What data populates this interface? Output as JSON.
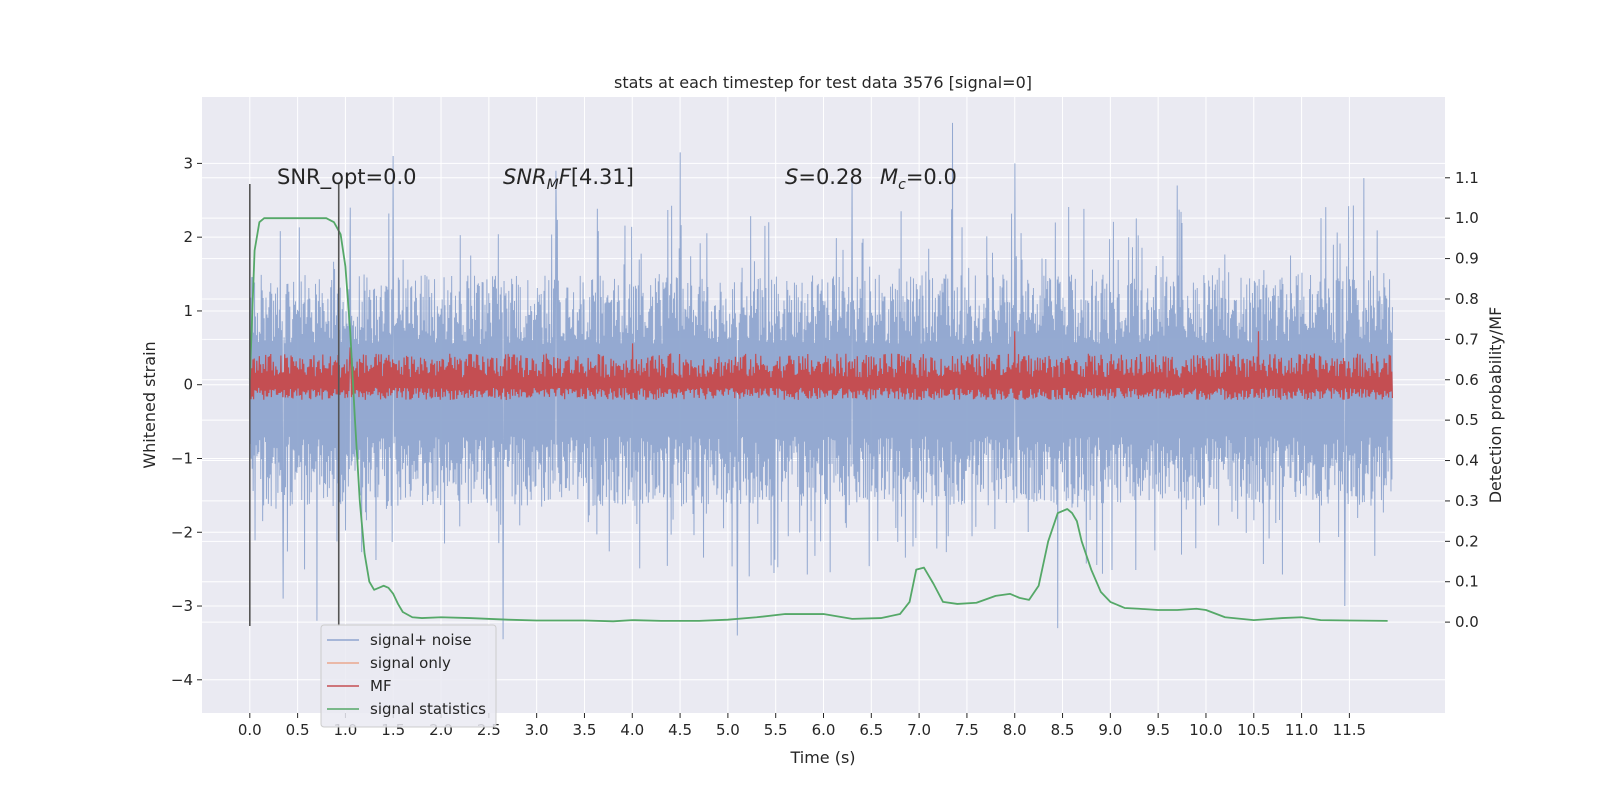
{
  "chart_data": {
    "type": "line",
    "title": "stats at each timestep for test data 3576 [signal=0]",
    "xlabel": "Time (s)",
    "ylabel": "Whitened strain",
    "y2label": "Detection probability/MF",
    "xlim": [
      -0.5,
      12.5
    ],
    "ylim": [
      -4.45,
      3.9
    ],
    "y2lim": [
      -0.225,
      1.3
    ],
    "xticks": [
      "0.0",
      "0.5",
      "1.0",
      "1.5",
      "2.0",
      "2.5",
      "3.0",
      "3.5",
      "4.0",
      "4.5",
      "5.0",
      "5.5",
      "6.0",
      "6.5",
      "7.0",
      "7.5",
      "8.0",
      "8.5",
      "9.0",
      "9.5",
      "10.0",
      "10.5",
      "11.0",
      "11.5"
    ],
    "yticks": [
      "3",
      "2",
      "1",
      "0",
      "−1",
      "−2",
      "−3",
      "−4"
    ],
    "y2ticks": [
      "1.1",
      "1.0",
      "0.9",
      "0.8",
      "0.7",
      "0.6",
      "0.5",
      "0.4",
      "0.3",
      "0.2",
      "0.1",
      "0.0"
    ],
    "grid": true,
    "legend_position": "bottom-left",
    "annotations": {
      "snr_opt": "SNR_opt=0.0",
      "snr_mf": "[4.31]",
      "s": "=0.28",
      "mc": "=0.0"
    },
    "vlines_x": [
      0.0,
      0.93
    ],
    "series": [
      {
        "name": "signal+ noise",
        "color": "#8fa5cf",
        "axis": "left",
        "x_start": 0.0,
        "x_end": 11.95,
        "envelope_upper_typical": 1.45,
        "envelope_lower_typical": -1.6,
        "spikes": [
          [
            1.5,
            3.1
          ],
          [
            4.5,
            3.15
          ],
          [
            7.35,
            3.55
          ],
          [
            8.0,
            3.0
          ],
          [
            11.65,
            2.8
          ],
          [
            5.1,
            -3.4
          ],
          [
            2.65,
            -3.45
          ],
          [
            0.7,
            -3.2
          ],
          [
            11.45,
            -3.0
          ],
          [
            8.45,
            -3.3
          ],
          [
            0.35,
            -2.9
          ],
          [
            1.05,
            2.4
          ],
          [
            3.2,
            2.9
          ],
          [
            9.7,
            2.7
          ],
          [
            6.3,
            2.8
          ]
        ]
      },
      {
        "name": "signal only",
        "color": "#e9a88e",
        "axis": "left",
        "values": []
      },
      {
        "name": "MF",
        "color": "#c44e52",
        "axis": "right",
        "x_start": 0.0,
        "x_end": 11.95,
        "baseline": 0.6,
        "band_low": 0.55,
        "band_high": 0.66,
        "peaks": [
          [
            8.0,
            0.72
          ],
          [
            10.55,
            0.72
          ],
          [
            4.0,
            0.69
          ],
          [
            1.05,
            0.68
          ]
        ]
      },
      {
        "name": "signal statistics",
        "color": "#55a868",
        "axis": "right",
        "x": [
          0.0,
          0.05,
          0.1,
          0.15,
          0.2,
          0.3,
          0.5,
          0.7,
          0.8,
          0.88,
          0.95,
          1.0,
          1.05,
          1.1,
          1.15,
          1.2,
          1.25,
          1.3,
          1.35,
          1.4,
          1.45,
          1.5,
          1.55,
          1.6,
          1.7,
          1.8,
          2.0,
          2.3,
          2.7,
          3.0,
          3.5,
          3.8,
          4.0,
          4.3,
          4.7,
          5.0,
          5.3,
          5.6,
          6.0,
          6.3,
          6.6,
          6.8,
          6.9,
          6.97,
          7.05,
          7.15,
          7.25,
          7.4,
          7.6,
          7.8,
          7.95,
          8.05,
          8.15,
          8.25,
          8.35,
          8.45,
          8.55,
          8.6,
          8.65,
          8.7,
          8.8,
          8.9,
          9.0,
          9.15,
          9.3,
          9.5,
          9.7,
          9.9,
          10.0,
          10.2,
          10.5,
          10.8,
          11.0,
          11.2,
          11.5,
          11.9
        ],
        "values": [
          0.6,
          0.92,
          0.99,
          1.0,
          1.0,
          1.0,
          1.0,
          1.0,
          1.0,
          0.99,
          0.96,
          0.88,
          0.72,
          0.5,
          0.3,
          0.17,
          0.1,
          0.08,
          0.085,
          0.09,
          0.085,
          0.07,
          0.045,
          0.025,
          0.012,
          0.01,
          0.012,
          0.01,
          0.006,
          0.004,
          0.004,
          0.002,
          0.005,
          0.003,
          0.003,
          0.006,
          0.012,
          0.02,
          0.02,
          0.008,
          0.01,
          0.02,
          0.05,
          0.13,
          0.135,
          0.095,
          0.05,
          0.045,
          0.048,
          0.065,
          0.07,
          0.06,
          0.055,
          0.09,
          0.2,
          0.27,
          0.28,
          0.27,
          0.25,
          0.2,
          0.13,
          0.075,
          0.05,
          0.035,
          0.033,
          0.03,
          0.03,
          0.033,
          0.03,
          0.012,
          0.005,
          0.01,
          0.012,
          0.005,
          0.004,
          0.003
        ]
      }
    ]
  }
}
